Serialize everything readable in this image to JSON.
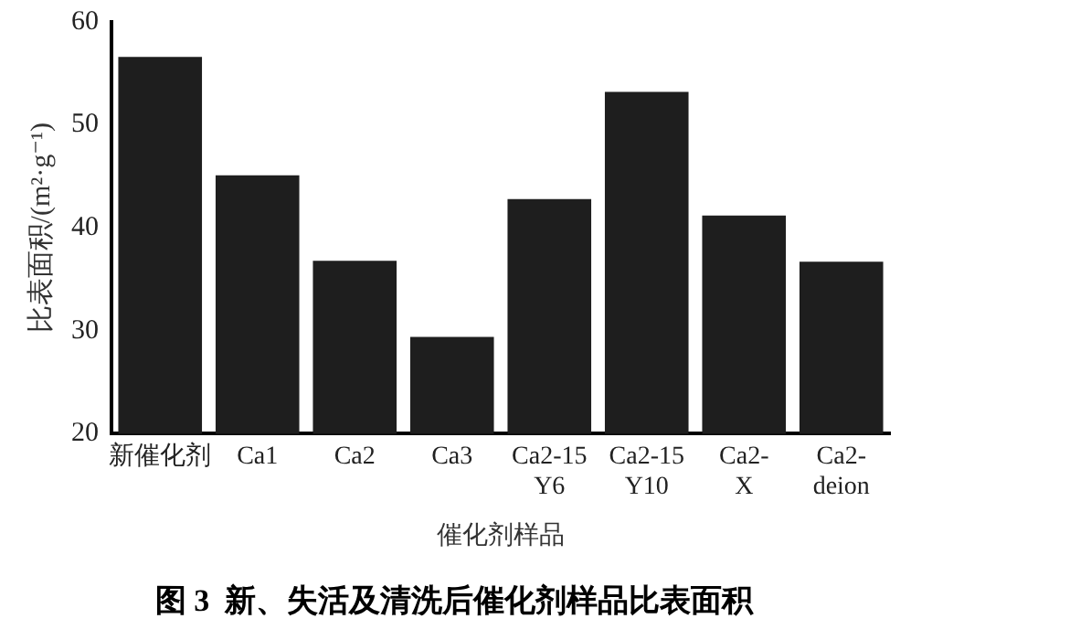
{
  "chart_data": {
    "type": "bar",
    "title": "图 3  新、失活及清洗后催化剂样品比表面积",
    "xlabel": "催化剂样品",
    "ylabel": "比表面积/(m²·g⁻¹)",
    "categories": [
      "新催化剂",
      "Ca1",
      "Ca2",
      "Ca3",
      "Ca2-15\nY6",
      "Ca2-15\nY10",
      "Ca2-\nX",
      "Ca2-\ndeion"
    ],
    "values": [
      56.6,
      45.1,
      36.8,
      29.4,
      42.8,
      53.2,
      41.2,
      36.7
    ],
    "color": "#1e1e1e",
    "ylim": [
      20,
      60
    ],
    "yticks": [
      20,
      30,
      40,
      50,
      60
    ],
    "grid": false,
    "legend": false
  }
}
